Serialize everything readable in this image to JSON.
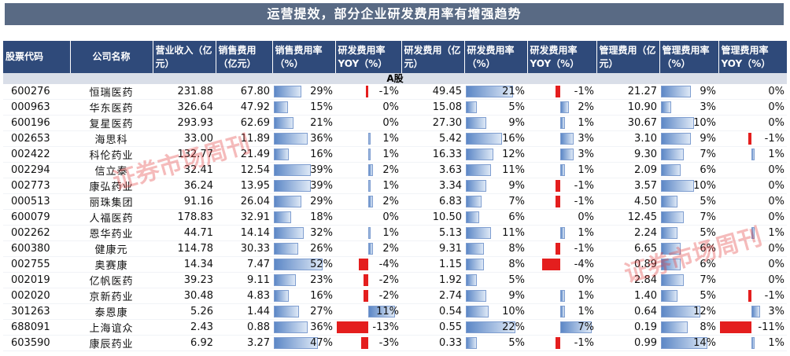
{
  "title": "运营提效，部分企业研发费用率有增强趋势",
  "headers": [
    "股票代码",
    "公司名称",
    "营业收入（亿元）",
    "销售费用（亿元）",
    "销售费用率（%）",
    "研发费用率YOY（%）",
    "研发费用（亿元）",
    "研发费用率（%）",
    "研发费用率YOY（%）",
    "管理费用（亿元）",
    "管理费用率（%）",
    "管理费用率YOY（%）"
  ],
  "section_label": "A股",
  "watermark": "证券市场周刊",
  "colors": {
    "header_bg": "#2F4A7A",
    "title_bg": "#596A84",
    "negative": "#E41E1E",
    "bar": "#5C87C6"
  },
  "rows": [
    {
      "code": "600276",
      "name": "恒瑞医药",
      "revenue": "231.88",
      "sales": "67.80",
      "sales_rate": "29%",
      "sales_rate_v": 29,
      "rd_yoy": "-1%",
      "rd_yoy_v": -1,
      "rd": "49.45",
      "rd_rate": "21%",
      "rd_rate_v": 21,
      "rd_rate_yoy": "-1%",
      "rd_rate_yoy_v": -1,
      "mgmt": "21.27",
      "mgmt_rate": "9%",
      "mgmt_rate_v": 9,
      "mgmt_yoy": "0%",
      "mgmt_yoy_v": 0
    },
    {
      "code": "000963",
      "name": "华东医药",
      "revenue": "326.64",
      "sales": "47.92",
      "sales_rate": "15%",
      "sales_rate_v": 15,
      "rd_yoy": "0%",
      "rd_yoy_v": 0,
      "rd": "15.08",
      "rd_rate": "5%",
      "rd_rate_v": 5,
      "rd_rate_yoy": "2%",
      "rd_rate_yoy_v": 2,
      "mgmt": "10.90",
      "mgmt_rate": "3%",
      "mgmt_rate_v": 3,
      "mgmt_yoy": "0%",
      "mgmt_yoy_v": 0
    },
    {
      "code": "600196",
      "name": "复星医药",
      "revenue": "293.93",
      "sales": "62.69",
      "sales_rate": "21%",
      "sales_rate_v": 21,
      "rd_yoy": "0%",
      "rd_yoy_v": 0,
      "rd": "27.30",
      "rd_rate": "9%",
      "rd_rate_v": 9,
      "rd_rate_yoy": "1%",
      "rd_rate_yoy_v": 1,
      "mgmt": "30.67",
      "mgmt_rate": "10%",
      "mgmt_rate_v": 10,
      "mgmt_yoy": "0%",
      "mgmt_yoy_v": 0
    },
    {
      "code": "002653",
      "name": "海思科",
      "revenue": "33.00",
      "sales": "11.89",
      "sales_rate": "36%",
      "sales_rate_v": 36,
      "rd_yoy": "1%",
      "rd_yoy_v": 1,
      "rd": "5.42",
      "rd_rate": "16%",
      "rd_rate_v": 16,
      "rd_rate_yoy": "3%",
      "rd_rate_yoy_v": 3,
      "mgmt": "3.10",
      "mgmt_rate": "9%",
      "mgmt_rate_v": 9,
      "mgmt_yoy": "-1%",
      "mgmt_yoy_v": -1
    },
    {
      "code": "002422",
      "name": "科伦药业",
      "revenue": "132.77",
      "sales": "21.49",
      "sales_rate": "16%",
      "sales_rate_v": 16,
      "rd_yoy": "1%",
      "rd_yoy_v": 1,
      "rd": "16.33",
      "rd_rate": "12%",
      "rd_rate_v": 12,
      "rd_rate_yoy": "3%",
      "rd_rate_yoy_v": 3,
      "mgmt": "9.30",
      "mgmt_rate": "7%",
      "mgmt_rate_v": 7,
      "mgmt_yoy": "1%",
      "mgmt_yoy_v": 1
    },
    {
      "code": "002294",
      "name": "信立泰",
      "revenue": "32.41",
      "sales": "12.54",
      "sales_rate": "39%",
      "sales_rate_v": 39,
      "rd_yoy": "2%",
      "rd_yoy_v": 2,
      "rd": "3.63",
      "rd_rate": "11%",
      "rd_rate_v": 11,
      "rd_rate_yoy": "1%",
      "rd_rate_yoy_v": 1,
      "mgmt": "2.09",
      "mgmt_rate": "6%",
      "mgmt_rate_v": 6,
      "mgmt_yoy": "0%",
      "mgmt_yoy_v": 0
    },
    {
      "code": "002773",
      "name": "康弘药业",
      "revenue": "36.24",
      "sales": "13.95",
      "sales_rate": "39%",
      "sales_rate_v": 39,
      "rd_yoy": "1%",
      "rd_yoy_v": 1,
      "rd": "3.34",
      "rd_rate": "9%",
      "rd_rate_v": 9,
      "rd_rate_yoy": "-1%",
      "rd_rate_yoy_v": -1,
      "mgmt": "3.57",
      "mgmt_rate": "10%",
      "mgmt_rate_v": 10,
      "mgmt_yoy": "0%",
      "mgmt_yoy_v": 0
    },
    {
      "code": "000513",
      "name": "丽珠集团",
      "revenue": "91.16",
      "sales": "26.04",
      "sales_rate": "29%",
      "sales_rate_v": 29,
      "rd_yoy": "2%",
      "rd_yoy_v": 2,
      "rd": "6.83",
      "rd_rate": "7%",
      "rd_rate_v": 7,
      "rd_rate_yoy": "-1%",
      "rd_rate_yoy_v": -1,
      "mgmt": "4.50",
      "mgmt_rate": "5%",
      "mgmt_rate_v": 5,
      "mgmt_yoy": "0%",
      "mgmt_yoy_v": 0
    },
    {
      "code": "600079",
      "name": "人福医药",
      "revenue": "178.83",
      "sales": "32.91",
      "sales_rate": "18%",
      "sales_rate_v": 18,
      "rd_yoy": "0%",
      "rd_yoy_v": 0,
      "rd": "10.50",
      "rd_rate": "6%",
      "rd_rate_v": 6,
      "rd_rate_yoy": "0%",
      "rd_rate_yoy_v": 0,
      "mgmt": "12.45",
      "mgmt_rate": "7%",
      "mgmt_rate_v": 7,
      "mgmt_yoy": "0%",
      "mgmt_yoy_v": 0
    },
    {
      "code": "002262",
      "name": "恩华药业",
      "revenue": "44.71",
      "sales": "14.14",
      "sales_rate": "32%",
      "sales_rate_v": 32,
      "rd_yoy": "1%",
      "rd_yoy_v": 1,
      "rd": "5.13",
      "rd_rate": "11%",
      "rd_rate_v": 11,
      "rd_rate_yoy": "1%",
      "rd_rate_yoy_v": 1,
      "mgmt": "2.24",
      "mgmt_rate": "5%",
      "mgmt_rate_v": 5,
      "mgmt_yoy": "1%",
      "mgmt_yoy_v": 1
    },
    {
      "code": "600380",
      "name": "健康元",
      "revenue": "114.78",
      "sales": "30.33",
      "sales_rate": "26%",
      "sales_rate_v": 26,
      "rd_yoy": "2%",
      "rd_yoy_v": 2,
      "rd": "9.31",
      "rd_rate": "8%",
      "rd_rate_v": 8,
      "rd_rate_yoy": "-1%",
      "rd_rate_yoy_v": -1,
      "mgmt": "6.65",
      "mgmt_rate": "6%",
      "mgmt_rate_v": 6,
      "mgmt_yoy": "0%",
      "mgmt_yoy_v": 0
    },
    {
      "code": "002755",
      "name": "奥赛康",
      "revenue": "14.34",
      "sales": "7.47",
      "sales_rate": "52%",
      "sales_rate_v": 52,
      "rd_yoy": "-4%",
      "rd_yoy_v": -4,
      "rd": "1.15",
      "rd_rate": "8%",
      "rd_rate_v": 8,
      "rd_rate_yoy": "-4%",
      "rd_rate_yoy_v": -4,
      "mgmt": "0.89",
      "mgmt_rate": "6%",
      "mgmt_rate_v": 6,
      "mgmt_yoy": "0%",
      "mgmt_yoy_v": 0
    },
    {
      "code": "002019",
      "name": "亿帆医药",
      "revenue": "39.23",
      "sales": "9.11",
      "sales_rate": "23%",
      "sales_rate_v": 23,
      "rd_yoy": "-2%",
      "rd_yoy_v": -2,
      "rd": "1.92",
      "rd_rate": "5%",
      "rd_rate_v": 5,
      "rd_rate_yoy": "0%",
      "rd_rate_yoy_v": 0,
      "mgmt": "2.84",
      "mgmt_rate": "7%",
      "mgmt_rate_v": 7,
      "mgmt_yoy": "0%",
      "mgmt_yoy_v": 0
    },
    {
      "code": "002020",
      "name": "京新药业",
      "revenue": "30.48",
      "sales": "4.83",
      "sales_rate": "16%",
      "sales_rate_v": 16,
      "rd_yoy": "-2%",
      "rd_yoy_v": -2,
      "rd": "2.74",
      "rd_rate": "9%",
      "rd_rate_v": 9,
      "rd_rate_yoy": "1%",
      "rd_rate_yoy_v": 1,
      "mgmt": "1.40",
      "mgmt_rate": "5%",
      "mgmt_rate_v": 5,
      "mgmt_yoy": "-1%",
      "mgmt_yoy_v": -1
    },
    {
      "code": "301263",
      "name": "泰恩康",
      "revenue": "5.26",
      "sales": "1.44",
      "sales_rate": "27%",
      "sales_rate_v": 27,
      "rd_yoy": "11%",
      "rd_yoy_v": 11,
      "rd": "0.54",
      "rd_rate": "10%",
      "rd_rate_v": 10,
      "rd_rate_yoy": "1%",
      "rd_rate_yoy_v": 1,
      "mgmt": "0.64",
      "mgmt_rate": "12%",
      "mgmt_rate_v": 12,
      "mgmt_yoy": "3%",
      "mgmt_yoy_v": 3
    },
    {
      "code": "688091",
      "name": "上海谊众",
      "revenue": "2.43",
      "sales": "0.88",
      "sales_rate": "36%",
      "sales_rate_v": 36,
      "rd_yoy": "-13%",
      "rd_yoy_v": -13,
      "rd": "0.55",
      "rd_rate": "22%",
      "rd_rate_v": 22,
      "rd_rate_yoy": "7%",
      "rd_rate_yoy_v": 7,
      "mgmt": "0.19",
      "mgmt_rate": "8%",
      "mgmt_rate_v": 8,
      "mgmt_yoy": "-11%",
      "mgmt_yoy_v": -11
    },
    {
      "code": "603590",
      "name": "康辰药业",
      "revenue": "6.92",
      "sales": "3.27",
      "sales_rate": "47%",
      "sales_rate_v": 47,
      "rd_yoy": "-3%",
      "rd_yoy_v": -3,
      "rd": "0.33",
      "rd_rate": "5%",
      "rd_rate_v": 5,
      "rd_rate_yoy": "-1%",
      "rd_rate_yoy_v": -1,
      "mgmt": "0.99",
      "mgmt_rate": "14%",
      "mgmt_rate_v": 14,
      "mgmt_yoy": "1%",
      "mgmt_yoy_v": 1
    }
  ]
}
